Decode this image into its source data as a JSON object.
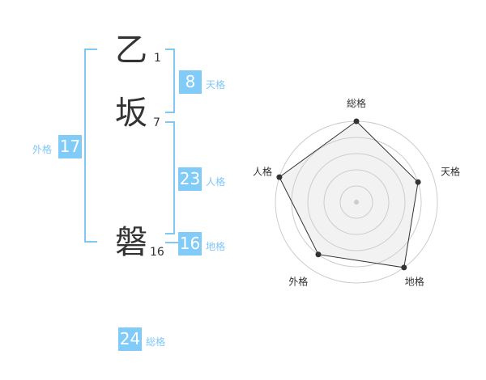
{
  "name": {
    "chars": [
      {
        "char": "乙",
        "strokes": "1"
      },
      {
        "char": "坂",
        "strokes": "7"
      },
      {
        "char": "磐",
        "strokes": "16"
      }
    ]
  },
  "fortunes": {
    "tenkaku": {
      "value": "8",
      "label": "天格"
    },
    "jinkaku": {
      "value": "23",
      "label": "人格"
    },
    "chikaku": {
      "value": "16",
      "label": "地格"
    },
    "gaikaku": {
      "value": "17",
      "label": "外格"
    },
    "soukaku": {
      "value": "24",
      "label": "総格"
    }
  },
  "colors": {
    "accent": "#80cbf8",
    "line": "#7fc8f6"
  },
  "chart_data": {
    "type": "radar",
    "axes": [
      "総格",
      "天格",
      "地格",
      "外格",
      "人格"
    ],
    "values": [
      5,
      4,
      5,
      4,
      5
    ],
    "range": [
      0,
      5
    ],
    "rings": 5,
    "grid": true
  }
}
